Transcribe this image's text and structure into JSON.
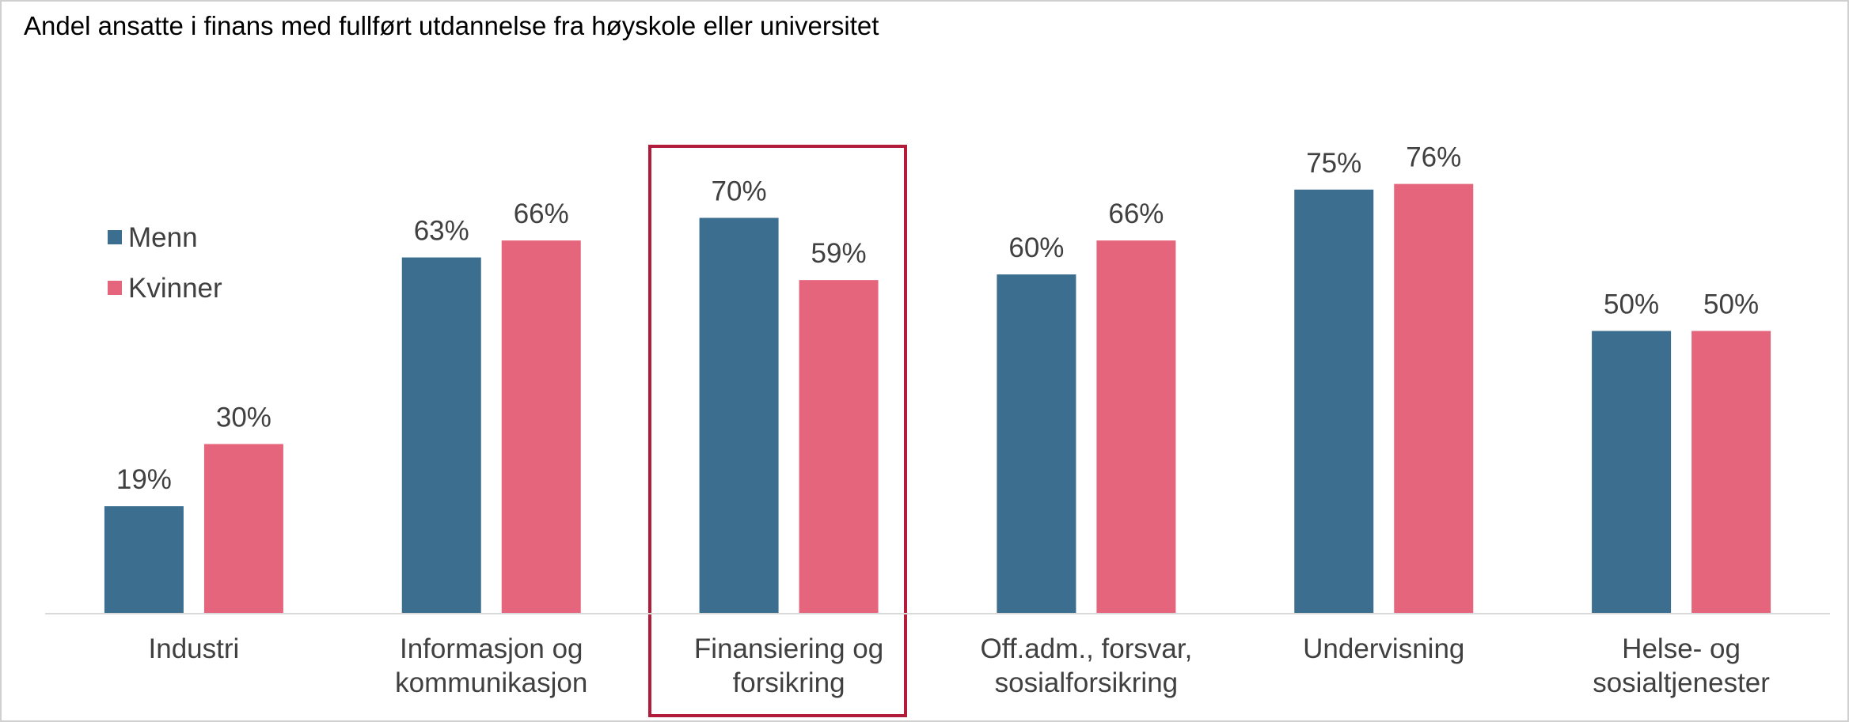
{
  "chart_data": {
    "type": "bar",
    "title": "Andel ansatte i finans med fullført utdannelse fra høyskole eller universitet",
    "categories": [
      "Industri",
      "Informasjon og\nkommunikasjon",
      "Finansiering og\nforsikring",
      "Off.adm., forsvar,\nsosialforsikring",
      "Undervisning",
      "Helse- og\nsosialtjenester"
    ],
    "series": [
      {
        "name": "Menn",
        "color": "#3b6e8f",
        "values": [
          19,
          63,
          70,
          60,
          75,
          50
        ],
        "value_labels": [
          "19%",
          "63%",
          "70%",
          "60%",
          "75%",
          "50%"
        ]
      },
      {
        "name": "Kvinner",
        "color": "#e5657d",
        "values": [
          30,
          66,
          59,
          66,
          76,
          50
        ],
        "value_labels": [
          "30%",
          "66%",
          "59%",
          "66%",
          "76%",
          "50%"
        ]
      }
    ],
    "ylim": [
      0,
      100
    ],
    "legend": "left"
  }
}
